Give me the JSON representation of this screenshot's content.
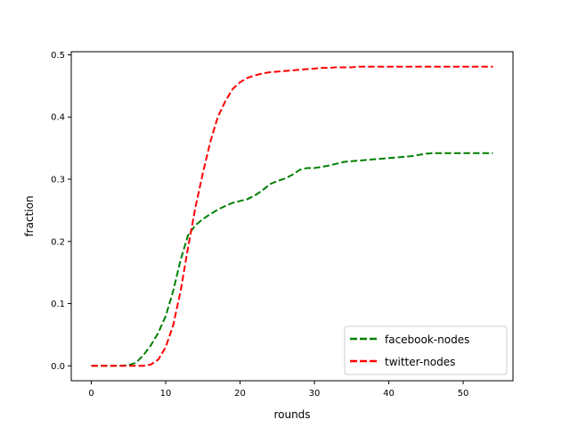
{
  "chart_data": {
    "type": "line",
    "xlabel": "rounds",
    "ylabel": "fraction",
    "xlim": [
      -2.7,
      56.7
    ],
    "ylim": [
      -0.024,
      0.505
    ],
    "xticks": [
      0,
      10,
      20,
      30,
      40,
      50
    ],
    "yticks": [
      0.0,
      0.1,
      0.2,
      0.3,
      0.4,
      0.5
    ],
    "xtick_labels": [
      "0",
      "10",
      "20",
      "30",
      "40",
      "50"
    ],
    "ytick_labels": [
      "0.0",
      "0.1",
      "0.2",
      "0.3",
      "0.4",
      "0.5"
    ],
    "grid": false,
    "legend_position": "lower-right",
    "series": [
      {
        "name": "facebook-nodes",
        "color": "#008000",
        "linestyle": "dashed",
        "x": [
          0,
          1,
          2,
          3,
          4,
          5,
          6,
          7,
          8,
          9,
          10,
          11,
          12,
          13,
          14,
          15,
          16,
          17,
          18,
          19,
          20,
          21,
          22,
          23,
          24,
          25,
          26,
          27,
          28,
          29,
          30,
          31,
          32,
          33,
          34,
          35,
          36,
          37,
          38,
          39,
          40,
          41,
          42,
          43,
          44,
          45,
          46,
          47,
          48,
          49,
          50,
          51,
          52,
          53,
          54
        ],
        "y": [
          0,
          0,
          0,
          0,
          0,
          0.001,
          0.005,
          0.017,
          0.033,
          0.053,
          0.08,
          0.12,
          0.17,
          0.21,
          0.226,
          0.236,
          0.244,
          0.251,
          0.257,
          0.262,
          0.265,
          0.268,
          0.274,
          0.282,
          0.292,
          0.297,
          0.301,
          0.307,
          0.315,
          0.318,
          0.318,
          0.32,
          0.322,
          0.325,
          0.328,
          0.329,
          0.33,
          0.331,
          0.332,
          0.333,
          0.334,
          0.335,
          0.336,
          0.337,
          0.339,
          0.341,
          0.342,
          0.342,
          0.342,
          0.342,
          0.342,
          0.342,
          0.342,
          0.342,
          0.342
        ]
      },
      {
        "name": "twitter-nodes",
        "color": "#ff0000",
        "linestyle": "dashed",
        "x": [
          0,
          1,
          2,
          3,
          4,
          5,
          6,
          7,
          8,
          9,
          10,
          11,
          12,
          13,
          14,
          15,
          16,
          17,
          18,
          19,
          20,
          21,
          22,
          23,
          24,
          25,
          26,
          27,
          28,
          29,
          30,
          31,
          32,
          33,
          34,
          35,
          36,
          37,
          38,
          39,
          40,
          41,
          42,
          43,
          44,
          45,
          46,
          47,
          48,
          49,
          50,
          51,
          52,
          53,
          54
        ],
        "y": [
          0,
          0,
          0,
          0,
          0,
          0,
          0,
          0,
          0.002,
          0.01,
          0.03,
          0.065,
          0.12,
          0.19,
          0.255,
          0.31,
          0.36,
          0.4,
          0.425,
          0.445,
          0.456,
          0.463,
          0.467,
          0.47,
          0.472,
          0.473,
          0.474,
          0.475,
          0.476,
          0.477,
          0.478,
          0.479,
          0.479,
          0.48,
          0.48,
          0.48,
          0.481,
          0.481,
          0.481,
          0.481,
          0.481,
          0.481,
          0.481,
          0.481,
          0.481,
          0.481,
          0.481,
          0.481,
          0.481,
          0.481,
          0.481,
          0.481,
          0.481,
          0.481,
          0.481
        ]
      }
    ]
  }
}
